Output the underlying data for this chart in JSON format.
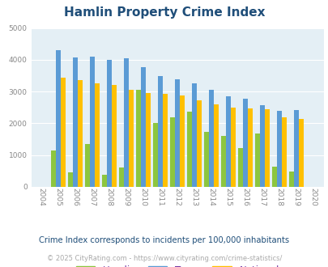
{
  "title": "Hamlin Property Crime Index",
  "years": [
    "2004",
    "2005",
    "2006",
    "2007",
    "2008",
    "2009",
    "2010",
    "2011",
    "2012",
    "2013",
    "2014",
    "2015",
    "2016",
    "2017",
    "2018",
    "2019",
    "2020"
  ],
  "hamlin": [
    0,
    1150,
    450,
    1350,
    380,
    600,
    3050,
    2020,
    2200,
    2380,
    1720,
    1600,
    1220,
    1680,
    640,
    480,
    0
  ],
  "texas": [
    0,
    4300,
    4080,
    4100,
    4000,
    4040,
    3780,
    3490,
    3390,
    3270,
    3050,
    2840,
    2780,
    2580,
    2400,
    2420,
    0
  ],
  "national": [
    0,
    3450,
    3360,
    3250,
    3210,
    3050,
    2950,
    2930,
    2870,
    2720,
    2600,
    2490,
    2460,
    2440,
    2190,
    2140,
    0
  ],
  "hamlin_color": "#8dc63f",
  "texas_color": "#5b9bd5",
  "national_color": "#ffc000",
  "bg_color": "#e4eff5",
  "ylim": [
    0,
    5000
  ],
  "yticks": [
    0,
    1000,
    2000,
    3000,
    4000,
    5000
  ],
  "subtitle": "Crime Index corresponds to incidents per 100,000 inhabitants",
  "footer": "© 2025 CityRating.com - https://www.cityrating.com/crime-statistics/",
  "title_color": "#1f4e79",
  "subtitle_color": "#1f4e79",
  "footer_color": "#aaaaaa",
  "legend_label_color": "#7030a0"
}
